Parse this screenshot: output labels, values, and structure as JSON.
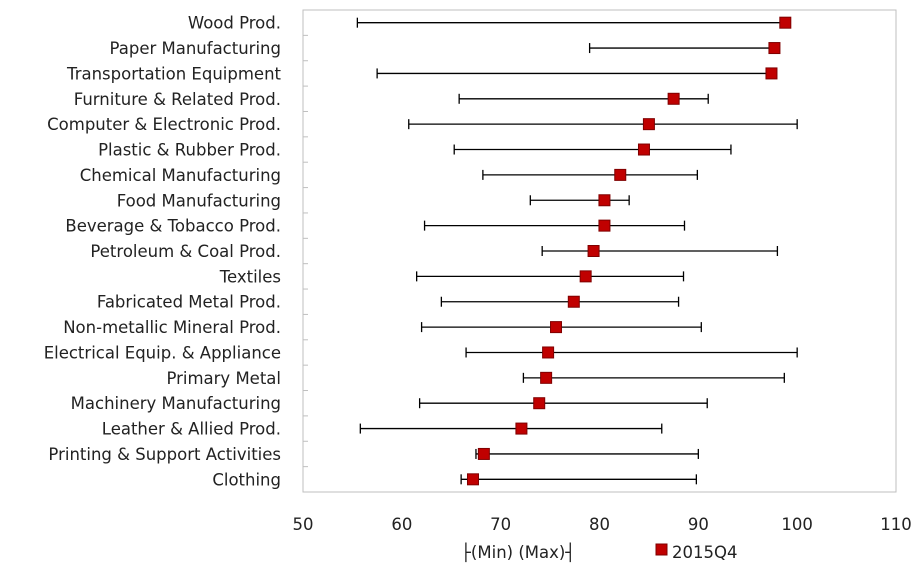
{
  "chart_data": {
    "type": "range-dot",
    "categories": [
      "Wood Prod.",
      "Paper Manufacturing",
      "Transportation Equipment",
      "Furniture & Related Prod.",
      "Computer & Electronic Prod.",
      "Plastic & Rubber Prod.",
      "Chemical Manufacturing",
      "Food Manufacturing",
      "Beverage & Tobacco Prod.",
      "Petroleum & Coal Prod.",
      "Textiles",
      "Fabricated Metal Prod.",
      "Non-metallic Mineral Prod.",
      "Electrical Equip. & Appliance",
      "Primary Metal",
      "Machinery Manufacturing",
      "Leather & Allied Prod.",
      "Printing & Support Activities",
      "Clothing"
    ],
    "min": [
      55.5,
      79.0,
      57.5,
      65.8,
      60.7,
      65.3,
      68.2,
      73.0,
      62.3,
      74.2,
      61.5,
      64.0,
      62.0,
      66.5,
      72.3,
      61.8,
      55.8,
      67.5,
      66.0
    ],
    "max": [
      98.8,
      97.8,
      97.8,
      91.0,
      100.0,
      93.3,
      89.9,
      83.0,
      88.6,
      98.0,
      88.5,
      88.0,
      90.3,
      100.0,
      98.7,
      90.9,
      86.3,
      90.0,
      89.8
    ],
    "value": [
      98.8,
      97.7,
      97.4,
      87.5,
      85.0,
      84.5,
      82.1,
      80.5,
      80.5,
      79.4,
      78.6,
      77.4,
      75.6,
      74.8,
      74.6,
      73.9,
      72.1,
      68.3,
      67.2
    ],
    "series_name": "2015Q4",
    "xlim": [
      50,
      110
    ],
    "xticks": [
      50,
      60,
      70,
      80,
      90,
      100,
      110
    ],
    "legend": {
      "range_text": "├(Min)  (Max)┤",
      "marker_label": "2015Q4"
    },
    "colors": {
      "marker": "#c00000",
      "marker_stroke": "#7f0000",
      "line": "#000000",
      "axis": "#bfbfbf"
    },
    "grid": false
  }
}
